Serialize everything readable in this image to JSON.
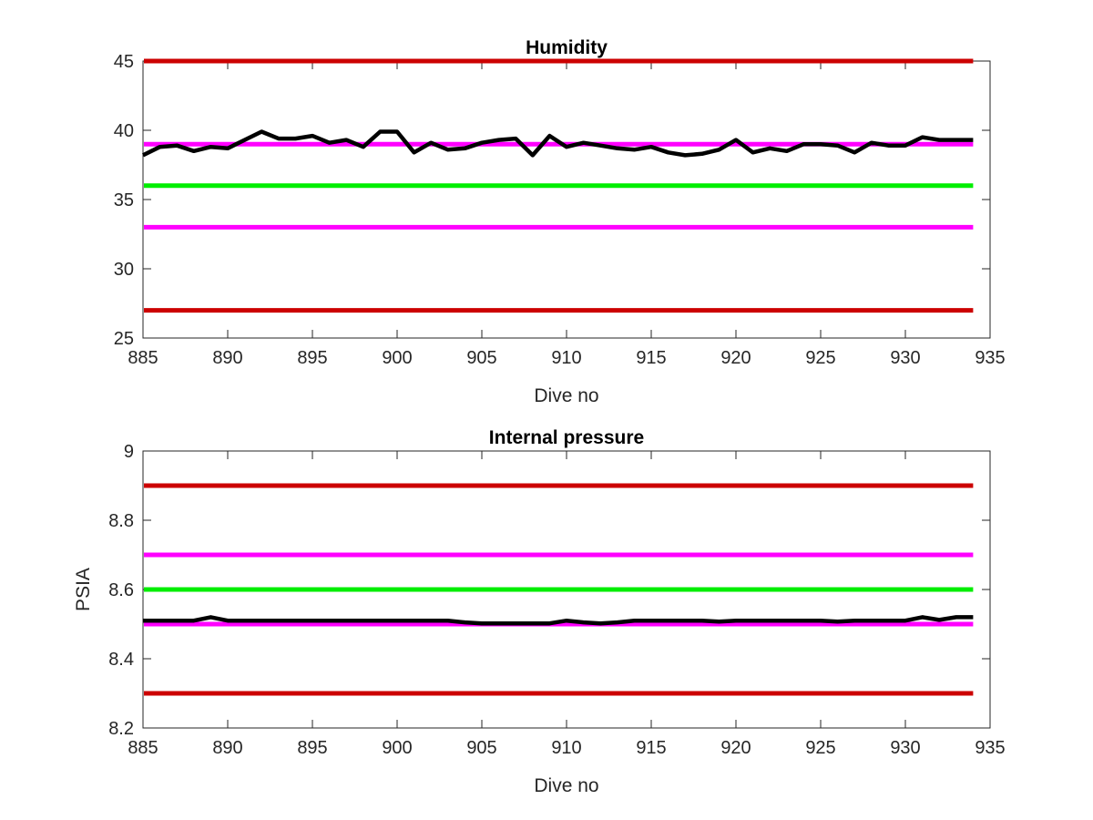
{
  "chart_data": [
    {
      "type": "line",
      "title": "Humidity",
      "xlabel": "Dive no",
      "ylabel": "",
      "xlim": [
        885,
        935
      ],
      "ylim": [
        25,
        45
      ],
      "xticks": [
        885,
        890,
        895,
        900,
        905,
        910,
        915,
        920,
        925,
        930,
        935
      ],
      "yticks": [
        25,
        30,
        35,
        40,
        45
      ],
      "grid": false,
      "reference_lines": [
        {
          "y": 45,
          "color": "#cc0000"
        },
        {
          "y": 39,
          "color": "#ff00ff"
        },
        {
          "y": 36,
          "color": "#00ee00"
        },
        {
          "y": 33,
          "color": "#ff00ff"
        },
        {
          "y": 27,
          "color": "#cc0000"
        }
      ],
      "series": [
        {
          "color": "#000000",
          "x": [
            885,
            886,
            887,
            888,
            889,
            890,
            891,
            892,
            893,
            894,
            895,
            896,
            897,
            898,
            899,
            900,
            901,
            902,
            903,
            904,
            905,
            906,
            907,
            908,
            909,
            910,
            911,
            912,
            913,
            914,
            915,
            916,
            917,
            918,
            919,
            920,
            921,
            922,
            923,
            924,
            925,
            926,
            927,
            928,
            929,
            930,
            931,
            932,
            933,
            934
          ],
          "y": [
            38.2,
            38.8,
            38.9,
            38.5,
            38.8,
            38.7,
            39.3,
            39.9,
            39.4,
            39.4,
            39.6,
            39.1,
            39.3,
            38.8,
            39.9,
            39.9,
            38.4,
            39.1,
            38.6,
            38.7,
            39.1,
            39.3,
            39.4,
            38.2,
            39.6,
            38.8,
            39.1,
            38.9,
            38.7,
            38.6,
            38.8,
            38.4,
            38.2,
            38.3,
            38.6,
            39.3,
            38.4,
            38.7,
            38.5,
            39.0,
            39.0,
            38.9,
            38.4,
            39.1,
            38.9,
            38.9,
            39.5,
            39.3,
            39.3,
            39.3
          ]
        }
      ]
    },
    {
      "type": "line",
      "title": "Internal pressure",
      "xlabel": "Dive no",
      "ylabel": "PSIA",
      "xlim": [
        885,
        935
      ],
      "ylim": [
        8.2,
        9
      ],
      "xticks": [
        885,
        890,
        895,
        900,
        905,
        910,
        915,
        920,
        925,
        930,
        935
      ],
      "yticks": [
        8.2,
        8.4,
        8.6,
        8.8,
        9
      ],
      "grid": false,
      "reference_lines": [
        {
          "y": 8.9,
          "color": "#cc0000"
        },
        {
          "y": 8.7,
          "color": "#ff00ff"
        },
        {
          "y": 8.6,
          "color": "#00ee00"
        },
        {
          "y": 8.5,
          "color": "#ff00ff"
        },
        {
          "y": 8.3,
          "color": "#cc0000"
        }
      ],
      "series": [
        {
          "color": "#000000",
          "x": [
            885,
            886,
            887,
            888,
            889,
            890,
            891,
            892,
            893,
            894,
            895,
            896,
            897,
            898,
            899,
            900,
            901,
            902,
            903,
            904,
            905,
            906,
            907,
            908,
            909,
            910,
            911,
            912,
            913,
            914,
            915,
            916,
            917,
            918,
            919,
            920,
            921,
            922,
            923,
            924,
            925,
            926,
            927,
            928,
            929,
            930,
            931,
            932,
            933,
            934
          ],
          "y": [
            8.51,
            8.51,
            8.51,
            8.51,
            8.52,
            8.51,
            8.51,
            8.51,
            8.51,
            8.51,
            8.51,
            8.51,
            8.51,
            8.51,
            8.51,
            8.51,
            8.51,
            8.51,
            8.51,
            8.505,
            8.502,
            8.502,
            8.502,
            8.502,
            8.502,
            8.51,
            8.505,
            8.502,
            8.505,
            8.51,
            8.51,
            8.51,
            8.51,
            8.51,
            8.507,
            8.51,
            8.51,
            8.51,
            8.51,
            8.51,
            8.51,
            8.507,
            8.51,
            8.51,
            8.51,
            8.51,
            8.52,
            8.512,
            8.52,
            8.52
          ]
        }
      ]
    }
  ]
}
